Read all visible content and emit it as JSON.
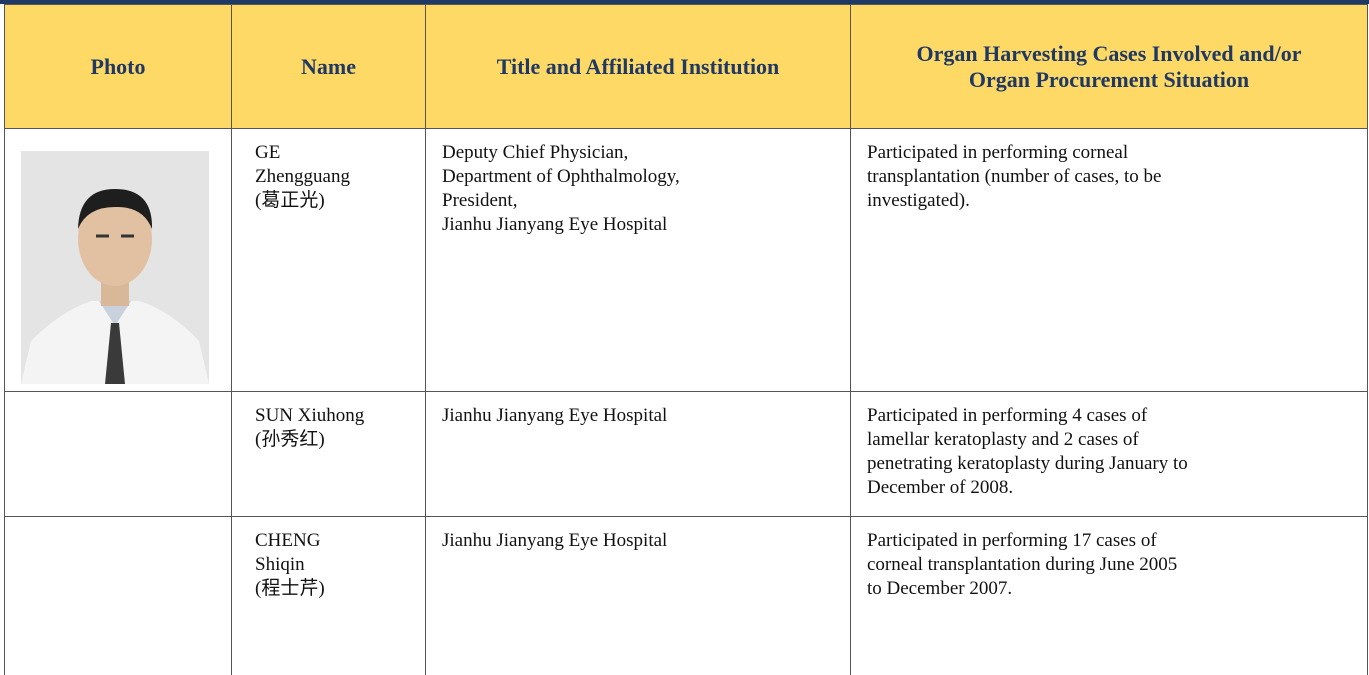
{
  "table": {
    "headers": [
      "Photo",
      "Name",
      "Title and Affiliated Institution",
      "Organ Harvesting Cases Involved and/or Organ Procurement Situation"
    ],
    "rows": [
      {
        "name": [
          "GE",
          "Zhengguang",
          "(葛正光)"
        ],
        "institution": [
          "Deputy Chief Physician,",
          "Department of Ophthalmology,",
          "President,",
          "Jianhu Jianyang Eye Hospital"
        ],
        "cases": [
          "Participated in performing corneal",
          "transplantation (number of cases, to be",
          "investigated)."
        ]
      },
      {
        "name": [
          "SUN Xiuhong",
          "(孙秀红)"
        ],
        "institution": [
          "Jianhu Jianyang Eye Hospital"
        ],
        "cases": [
          "Participated in performing 4 cases of",
          "lamellar keratoplasty and 2 cases of",
          "penetrating keratoplasty during January to",
          "December of 2008."
        ]
      },
      {
        "name": [
          "CHENG",
          "Shiqin",
          "(程士芹)"
        ],
        "institution": [
          "Jianhu Jianyang Eye Hospital"
        ],
        "cases": [
          "Participated in performing 17 cases of",
          "corneal transplantation during June 2005",
          "to December 2007."
        ]
      }
    ]
  }
}
